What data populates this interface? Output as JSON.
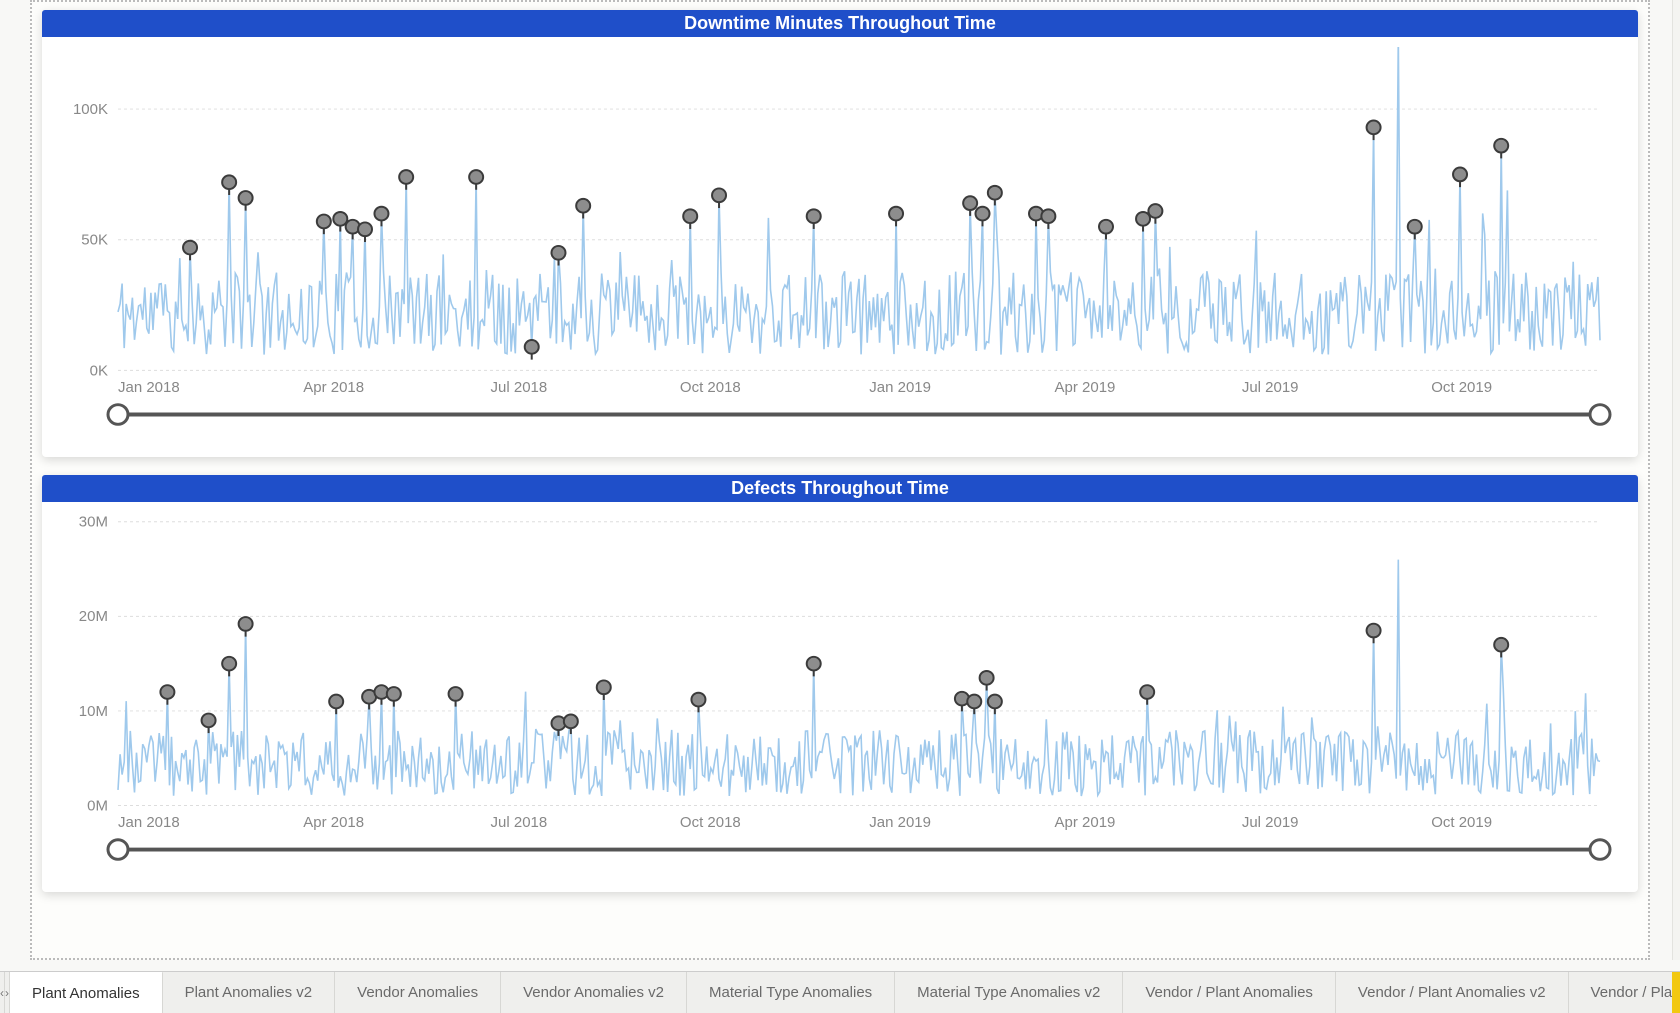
{
  "page": {
    "background_color": "#f8f8f6",
    "canvas_border_color": "#bbbbbb"
  },
  "tabs": {
    "nav_prev": "‹",
    "nav_next": "›",
    "active_index": 0,
    "items": [
      {
        "label": "Plant Anomalies"
      },
      {
        "label": "Plant Anomalies v2"
      },
      {
        "label": "Vendor Anomalies"
      },
      {
        "label": "Vendor Anomalies v2"
      },
      {
        "label": "Material Type Anomalies"
      },
      {
        "label": "Material Type Anomalies v2"
      },
      {
        "label": "Vendor / Plant Anomalies"
      },
      {
        "label": "Vendor / Plant Anomalies v2"
      },
      {
        "label": "Vendor / Plant Ano"
      }
    ],
    "accent_color": "#f2c811"
  },
  "charts": [
    {
      "id": "downtime",
      "title": "Downtime Minutes Throughout Time",
      "title_bg": "#1f4fc9",
      "title_color": "#ffffff",
      "type": "line",
      "line_color": "#9fc9ec",
      "line_width": 1.6,
      "background_color": "#ffffff",
      "grid_color": "#dddddd",
      "axis_label_color": "#888888",
      "axis_fontsize": 15,
      "ylim": [
        0,
        120000
      ],
      "y_ticks": [
        {
          "v": 0,
          "label": "0K"
        },
        {
          "v": 50000,
          "label": "50K"
        },
        {
          "v": 100000,
          "label": "100K"
        }
      ],
      "x_ticks": [
        {
          "t": 0,
          "label": "Jan 2018"
        },
        {
          "t": 90,
          "label": "Apr 2018"
        },
        {
          "t": 181,
          "label": "Jul 2018"
        },
        {
          "t": 273,
          "label": "Oct 2018"
        },
        {
          "t": 365,
          "label": "Jan 2019"
        },
        {
          "t": 455,
          "label": "Apr 2019"
        },
        {
          "t": 546,
          "label": "Jul 2019"
        },
        {
          "t": 638,
          "label": "Oct 2019"
        }
      ],
      "x_domain": [
        0,
        720
      ],
      "anomaly_marker": {
        "fill": "#8d8d8d",
        "stroke": "#3b3b3b",
        "radius": 7
      },
      "slider": {
        "track_color": "#555555",
        "handle_fill": "#ffffff",
        "handle_stroke": "#555555",
        "start": 0,
        "end": 720
      },
      "series_seed": 11,
      "series_baseline": 22000,
      "series_noise_amp": 16000,
      "series_spike_prob": 0.05,
      "series_spike_amp": 35000,
      "big_spike": {
        "t": 622,
        "value": 128000
      },
      "anomalies": [
        {
          "t": 35,
          "v": 47000
        },
        {
          "t": 54,
          "v": 72000
        },
        {
          "t": 62,
          "v": 66000
        },
        {
          "t": 100,
          "v": 57000
        },
        {
          "t": 108,
          "v": 58000
        },
        {
          "t": 114,
          "v": 55000
        },
        {
          "t": 120,
          "v": 54000
        },
        {
          "t": 128,
          "v": 60000
        },
        {
          "t": 140,
          "v": 74000
        },
        {
          "t": 174,
          "v": 74000
        },
        {
          "t": 201,
          "v": 9000
        },
        {
          "t": 214,
          "v": 45000
        },
        {
          "t": 226,
          "v": 63000
        },
        {
          "t": 278,
          "v": 59000
        },
        {
          "t": 292,
          "v": 67000
        },
        {
          "t": 338,
          "v": 59000
        },
        {
          "t": 378,
          "v": 60000
        },
        {
          "t": 414,
          "v": 64000
        },
        {
          "t": 420,
          "v": 60000
        },
        {
          "t": 426,
          "v": 68000
        },
        {
          "t": 446,
          "v": 60000
        },
        {
          "t": 452,
          "v": 59000
        },
        {
          "t": 480,
          "v": 55000
        },
        {
          "t": 498,
          "v": 58000
        },
        {
          "t": 504,
          "v": 61000
        },
        {
          "t": 610,
          "v": 93000
        },
        {
          "t": 630,
          "v": 55000
        },
        {
          "t": 652,
          "v": 75000
        },
        {
          "t": 672,
          "v": 86000
        }
      ]
    },
    {
      "id": "defects",
      "title": "Defects Throughout Time",
      "title_bg": "#1f4fc9",
      "title_color": "#ffffff",
      "type": "line",
      "line_color": "#9fc9ec",
      "line_width": 1.6,
      "background_color": "#ffffff",
      "grid_color": "#dddddd",
      "axis_label_color": "#888888",
      "axis_fontsize": 15,
      "ylim": [
        0,
        30000000
      ],
      "y_ticks": [
        {
          "v": 0,
          "label": "0M"
        },
        {
          "v": 10000000,
          "label": "10M"
        },
        {
          "v": 20000000,
          "label": "20M"
        },
        {
          "v": 30000000,
          "label": "30M"
        }
      ],
      "x_ticks": [
        {
          "t": 0,
          "label": "Jan 2018"
        },
        {
          "t": 90,
          "label": "Apr 2018"
        },
        {
          "t": 181,
          "label": "Jul 2018"
        },
        {
          "t": 273,
          "label": "Oct 2018"
        },
        {
          "t": 365,
          "label": "Jan 2019"
        },
        {
          "t": 455,
          "label": "Apr 2019"
        },
        {
          "t": 546,
          "label": "Jul 2019"
        },
        {
          "t": 638,
          "label": "Oct 2019"
        }
      ],
      "x_domain": [
        0,
        720
      ],
      "anomaly_marker": {
        "fill": "#8d8d8d",
        "stroke": "#3b3b3b",
        "radius": 7
      },
      "slider": {
        "track_color": "#555555",
        "handle_fill": "#ffffff",
        "handle_stroke": "#555555",
        "start": 0,
        "end": 720
      },
      "series_seed": 23,
      "series_baseline": 4500000,
      "series_noise_amp": 3500000,
      "series_spike_prob": 0.04,
      "series_spike_amp": 6000000,
      "big_spike": {
        "t": 622,
        "value": 26000000
      },
      "anomalies": [
        {
          "t": 24,
          "v": 12000000
        },
        {
          "t": 44,
          "v": 9000000
        },
        {
          "t": 54,
          "v": 15000000
        },
        {
          "t": 62,
          "v": 19200000
        },
        {
          "t": 106,
          "v": 11000000
        },
        {
          "t": 122,
          "v": 11500000
        },
        {
          "t": 128,
          "v": 12000000
        },
        {
          "t": 134,
          "v": 11800000
        },
        {
          "t": 164,
          "v": 11800000
        },
        {
          "t": 214,
          "v": 8700000
        },
        {
          "t": 220,
          "v": 8900000
        },
        {
          "t": 236,
          "v": 12500000
        },
        {
          "t": 282,
          "v": 11200000
        },
        {
          "t": 338,
          "v": 15000000
        },
        {
          "t": 410,
          "v": 11300000
        },
        {
          "t": 416,
          "v": 11000000
        },
        {
          "t": 422,
          "v": 13500000
        },
        {
          "t": 426,
          "v": 11000000
        },
        {
          "t": 500,
          "v": 12000000
        },
        {
          "t": 610,
          "v": 18500000
        },
        {
          "t": 672,
          "v": 17000000
        }
      ]
    }
  ]
}
